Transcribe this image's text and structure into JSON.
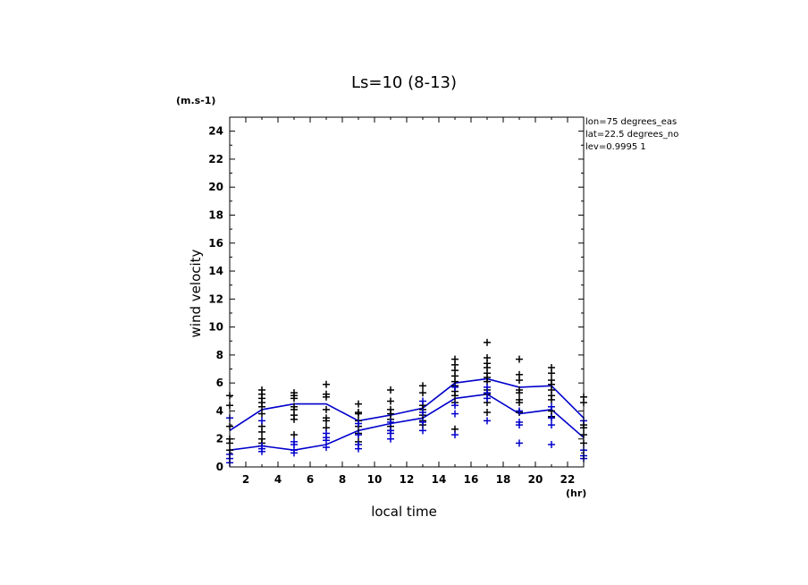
{
  "chart_data": {
    "type": "scatter",
    "title": "Ls=10 (8-13)",
    "xlabel": "local time",
    "ylabel": "wind velocity",
    "x_unit": "(hr)",
    "y_unit": "(m.s-1)",
    "xlim": [
      1,
      23
    ],
    "ylim": [
      0,
      25
    ],
    "xticks": [
      2,
      4,
      6,
      8,
      10,
      12,
      14,
      16,
      18,
      20,
      22
    ],
    "yticks": [
      0,
      2,
      4,
      6,
      8,
      10,
      12,
      14,
      16,
      18,
      20,
      22,
      24
    ],
    "info": [
      "lon=75 degrees_eas",
      "lat=22.5 degrees_no",
      "lev=0.9995 1"
    ],
    "colors": {
      "black": "#000000",
      "blue": "#0000cc"
    },
    "lines": [
      {
        "color": "blue",
        "x": [
          1,
          3,
          5,
          7,
          9,
          11,
          13,
          15,
          17,
          19,
          21,
          23
        ],
        "y": [
          2.6,
          4.1,
          4.5,
          4.5,
          3.3,
          3.7,
          4.2,
          6.0,
          6.3,
          5.7,
          5.8,
          3.5
        ]
      },
      {
        "color": "blue",
        "x": [
          1,
          3,
          5,
          7,
          9,
          11,
          13,
          15,
          17,
          19,
          21,
          23
        ],
        "y": [
          1.2,
          1.5,
          1.2,
          1.6,
          2.6,
          3.1,
          3.5,
          4.9,
          5.2,
          3.8,
          4.1,
          2.1
        ]
      }
    ],
    "points": [
      {
        "x": 1,
        "color": "black",
        "y": [
          5.1,
          4.4,
          2.9,
          2.0,
          1.7,
          1.2
        ]
      },
      {
        "x": 1,
        "color": "blue",
        "y": [
          3.5,
          0.9,
          0.6,
          0.3
        ]
      },
      {
        "x": 3,
        "color": "black",
        "y": [
          5.5,
          5.2,
          4.9,
          4.6,
          4.3,
          3.8,
          2.9,
          2.5,
          2.0,
          1.7
        ]
      },
      {
        "x": 3,
        "color": "blue",
        "y": [
          3.3,
          1.5,
          1.3,
          1.1
        ]
      },
      {
        "x": 5,
        "color": "black",
        "y": [
          5.3,
          5.1,
          4.9,
          4.3,
          4.1,
          3.7,
          3.4,
          2.3
        ]
      },
      {
        "x": 5,
        "color": "blue",
        "y": [
          1.8,
          1.6,
          1.2,
          1.0
        ]
      },
      {
        "x": 7,
        "color": "black",
        "y": [
          5.9,
          5.2,
          5.0,
          4.1,
          3.5,
          3.3,
          2.8
        ]
      },
      {
        "x": 7,
        "color": "blue",
        "y": [
          2.4,
          2.1,
          1.9,
          1.4
        ]
      },
      {
        "x": 9,
        "color": "black",
        "y": [
          4.5,
          3.9,
          3.8,
          3.3,
          2.9,
          2.4,
          1.8
        ]
      },
      {
        "x": 9,
        "color": "blue",
        "y": [
          3.1,
          2.3,
          1.6,
          1.3
        ]
      },
      {
        "x": 11,
        "color": "black",
        "y": [
          5.5,
          4.7,
          4.1,
          3.8,
          3.4,
          2.9,
          2.6
        ]
      },
      {
        "x": 11,
        "color": "blue",
        "y": [
          3.2,
          2.6,
          2.4,
          2.0
        ]
      },
      {
        "x": 13,
        "color": "black",
        "y": [
          5.8,
          5.3,
          4.4,
          4.1,
          3.7,
          3.3,
          3.0
        ]
      },
      {
        "x": 13,
        "color": "blue",
        "y": [
          4.7,
          3.9,
          3.2,
          2.6
        ]
      },
      {
        "x": 15,
        "color": "black",
        "y": [
          7.7,
          7.3,
          6.9,
          6.5,
          6.1,
          5.8,
          5.4,
          5.1,
          4.6,
          2.7
        ]
      },
      {
        "x": 15,
        "color": "blue",
        "y": [
          5.7,
          4.4,
          3.8,
          2.3
        ]
      },
      {
        "x": 17,
        "color": "black",
        "y": [
          8.9,
          7.8,
          7.4,
          7.1,
          6.7,
          6.4,
          6.1,
          5.5,
          5.2,
          4.6,
          3.9
        ]
      },
      {
        "x": 17,
        "color": "blue",
        "y": [
          5.7,
          5.3,
          4.9,
          3.3
        ]
      },
      {
        "x": 19,
        "color": "black",
        "y": [
          7.7,
          6.6,
          6.2,
          5.5,
          5.3,
          4.8,
          4.6,
          3.9
        ]
      },
      {
        "x": 19,
        "color": "blue",
        "y": [
          4.0,
          3.2,
          3.0,
          1.7
        ]
      },
      {
        "x": 21,
        "color": "black",
        "y": [
          7.1,
          6.7,
          6.2,
          5.9,
          5.5,
          5.1,
          4.8,
          4.0,
          3.6
        ]
      },
      {
        "x": 21,
        "color": "blue",
        "y": [
          4.3,
          3.5,
          3.0,
          1.6
        ]
      },
      {
        "x": 23,
        "color": "black",
        "y": [
          5.0,
          4.6,
          3.0,
          2.8,
          2.3,
          1.7
        ]
      },
      {
        "x": 23,
        "color": "blue",
        "y": [
          3.3,
          1.2,
          0.8,
          0.6
        ]
      }
    ]
  }
}
